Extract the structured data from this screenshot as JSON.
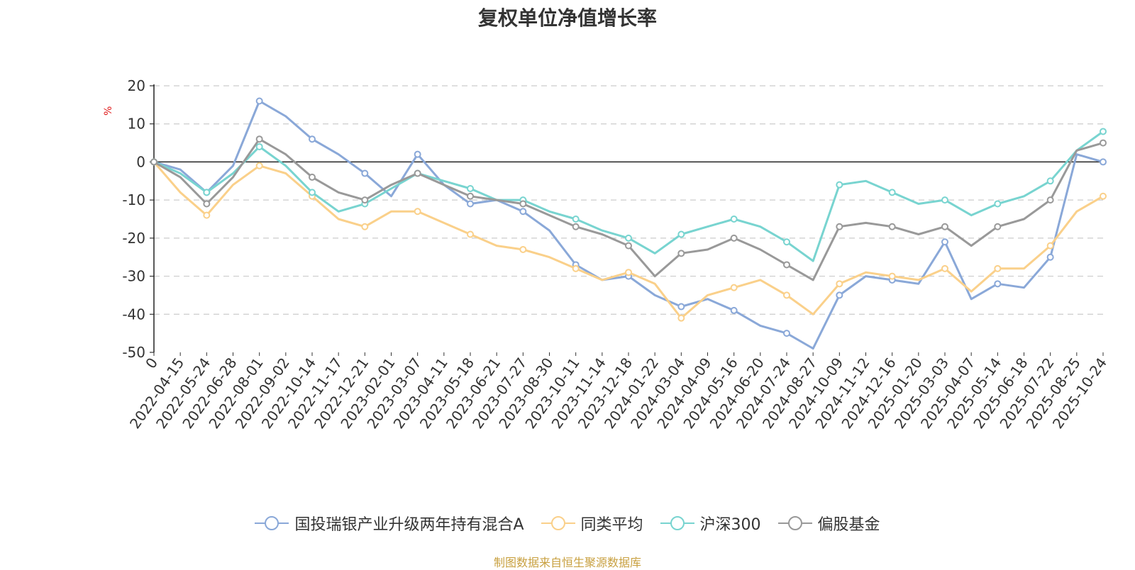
{
  "chart_data": {
    "type": "line",
    "title": "复权单位净值增长率",
    "ylabel": "%",
    "ylim": [
      -50,
      20
    ],
    "yticks": [
      20,
      10,
      0,
      -10,
      -20,
      -30,
      -40,
      -50
    ],
    "categories": [
      "0",
      "2022-04-15",
      "2022-05-24",
      "2022-06-28",
      "2022-08-01",
      "2022-09-02",
      "2022-10-14",
      "2022-11-17",
      "2022-12-21",
      "2023-02-01",
      "2023-03-07",
      "2023-04-11",
      "2023-05-18",
      "2023-06-21",
      "2023-07-27",
      "2023-08-30",
      "2023-10-11",
      "2023-11-14",
      "2023-12-18",
      "2024-01-22",
      "2024-03-04",
      "2024-04-09",
      "2024-05-16",
      "2024-06-20",
      "2024-07-24",
      "2024-08-27",
      "2024-10-09",
      "2024-11-12",
      "2024-12-16",
      "2025-01-20",
      "2025-03-03",
      "2025-04-07",
      "2025-05-14",
      "2025-06-18",
      "2025-07-22",
      "2025-08-25",
      "2025-10-24"
    ],
    "series": [
      {
        "name": "国投瑞银产业升级两年持有混合A",
        "color": "#8aa8d8",
        "values": [
          0,
          -2,
          -8,
          -1,
          16,
          12,
          6,
          2,
          -3,
          -9,
          2,
          -6,
          -11,
          -10,
          -13,
          -18,
          -27,
          -31,
          -30,
          -35,
          -38,
          -36,
          -39,
          -43,
          -45,
          -49,
          -35,
          -30,
          -31,
          -32,
          -21,
          -36,
          -32,
          -33,
          -25,
          2,
          0
        ]
      },
      {
        "name": "同类平均",
        "color": "#fad08a",
        "values": [
          0,
          -8,
          -14,
          -6,
          -1,
          -3,
          -9,
          -15,
          -17,
          -13,
          -13,
          -16,
          -19,
          -22,
          -23,
          -25,
          -28,
          -31,
          -29,
          -32,
          -41,
          -35,
          -33,
          -31,
          -35,
          -40,
          -32,
          -29,
          -30,
          -31,
          -28,
          -34,
          -28,
          -28,
          -22,
          -13,
          -9
        ]
      },
      {
        "name": "沪深300",
        "color": "#78d4d0",
        "values": [
          0,
          -3,
          -8,
          -3,
          4,
          -1,
          -8,
          -13,
          -11,
          -7,
          -3,
          -5,
          -7,
          -10,
          -10,
          -13,
          -15,
          -18,
          -20,
          -24,
          -19,
          -17,
          -15,
          -17,
          -21,
          -26,
          -6,
          -5,
          -8,
          -11,
          -10,
          -14,
          -11,
          -9,
          -5,
          3,
          8
        ]
      },
      {
        "name": "偏股基金",
        "color": "#999999",
        "values": [
          0,
          -4,
          -11,
          -4,
          6,
          2,
          -4,
          -8,
          -10,
          -6,
          -3,
          -6,
          -9,
          -10,
          -11,
          -14,
          -17,
          -19,
          -22,
          -30,
          -24,
          -23,
          -20,
          -23,
          -27,
          -31,
          -17,
          -16,
          -17,
          -19,
          -17,
          -22,
          -17,
          -15,
          -10,
          3,
          5
        ]
      }
    ]
  },
  "source_text": "制图数据来自恒生聚源数据库"
}
